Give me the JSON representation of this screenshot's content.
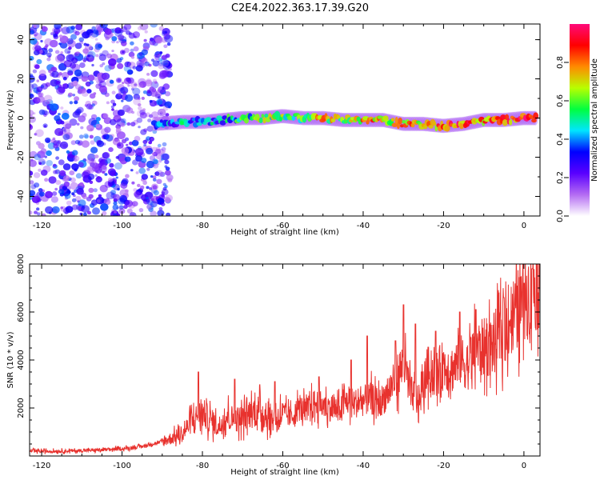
{
  "title": "C2E4.2022.363.17.39.G20",
  "colors": {
    "snr_line": "#e8322e",
    "axis": "#000000",
    "colorbar": [
      "#ffffff",
      "#b46cf2",
      "#5a00ff",
      "#0000ff",
      "#00e5ff",
      "#00ff40",
      "#b8ff00",
      "#ff8a00",
      "#ff0000",
      "#ff0a7a"
    ]
  },
  "chart_data": [
    {
      "type": "heatmap",
      "xlabel": "Height of straight line (km)",
      "ylabel": "Frequency (Hz)",
      "xlim": [
        -123,
        4
      ],
      "ylim": [
        -50,
        48
      ],
      "x_ticks": [
        "-120",
        "-100",
        "-80",
        "-60",
        "-40",
        "-20",
        "0"
      ],
      "x_tick_values": [
        -120,
        -100,
        -80,
        -60,
        -40,
        -20,
        0
      ],
      "y_ticks": [
        "-40",
        "-20",
        "0",
        "20",
        "40"
      ],
      "y_tick_values": [
        -40,
        -20,
        0,
        20,
        40
      ],
      "colorbar": {
        "label": "Normalized spectral amplitude",
        "range": [
          0,
          1
        ],
        "ticks": [
          "0.0",
          "0.2",
          "0.4",
          "0.6",
          "0.8"
        ],
        "tick_values": [
          0.0,
          0.2,
          0.4,
          0.6,
          0.8
        ]
      },
      "ridge": {
        "x": [
          -92,
          -85,
          -80,
          -75,
          -70,
          -65,
          -60,
          -55,
          -50,
          -45,
          -40,
          -35,
          -30,
          -25,
          -20,
          -15,
          -10,
          -5,
          0,
          3
        ],
        "frequency": [
          -3,
          -2,
          -2,
          -1,
          0,
          0,
          1,
          0,
          0,
          -1,
          -1,
          -1,
          -3,
          -3,
          -4,
          -3,
          -1,
          -1,
          0,
          0
        ],
        "amplitude": [
          0.35,
          0.4,
          0.4,
          0.45,
          0.5,
          0.55,
          0.6,
          0.6,
          0.7,
          0.6,
          0.75,
          0.7,
          0.75,
          0.7,
          0.8,
          0.85,
          0.75,
          0.8,
          0.9,
          0.95
        ]
      },
      "noise_region": {
        "x_range": [
          -123,
          -92
        ],
        "frequency_range": [
          -50,
          48
        ],
        "amplitude_range": [
          0.0,
          0.25
        ]
      }
    },
    {
      "type": "line",
      "xlabel": "Height of straight line (km)",
      "ylabel": "SNR (10 * v/v)",
      "xlim": [
        -123,
        4
      ],
      "ylim": [
        0,
        8000
      ],
      "x_ticks": [
        "-120",
        "-100",
        "-80",
        "-60",
        "-40",
        "-20",
        "0"
      ],
      "x_tick_values": [
        -120,
        -100,
        -80,
        -60,
        -40,
        -20,
        0
      ],
      "y_ticks": [
        "2000",
        "4000",
        "6000",
        "8000"
      ],
      "y_tick_values": [
        2000,
        4000,
        6000,
        8000
      ],
      "series": [
        {
          "x": [
            -123,
            -115,
            -105,
            -100,
            -95,
            -90,
            -85,
            -83,
            -80,
            -78,
            -76,
            -74,
            -72,
            -70,
            -68,
            -66,
            -64,
            -62,
            -60,
            -58,
            -56,
            -54,
            -52,
            -50,
            -48,
            -46,
            -44,
            -42,
            -40,
            -38,
            -36,
            -34,
            -32,
            -30,
            -28,
            -26,
            -24,
            -22,
            -20,
            -18,
            -16,
            -14,
            -12,
            -10,
            -8,
            -6,
            -4,
            -2,
            0,
            2,
            4
          ],
          "values": [
            200,
            200,
            250,
            300,
            400,
            600,
            900,
            1400,
            1800,
            1500,
            1200,
            1700,
            1500,
            1600,
            1800,
            1900,
            1700,
            1500,
            1800,
            1600,
            2000,
            1900,
            2200,
            2100,
            2000,
            1900,
            2300,
            2200,
            2300,
            2400,
            2200,
            2600,
            3200,
            3800,
            2600,
            2300,
            3600,
            3400,
            3800,
            3600,
            4000,
            3800,
            4400,
            4500,
            4600,
            5000,
            5600,
            6000,
            6500,
            7000,
            7300
          ],
          "peaks": {
            "x": [
              -81,
              -72,
              -62,
              -51,
              -43,
              -39,
              -32,
              -30,
              -27,
              -22,
              -16,
              -12,
              -5,
              0,
              2
            ],
            "values": [
              3500,
              3200,
              3100,
              3300,
              4000,
              5000,
              4800,
              6300,
              5500,
              5200,
              6000,
              6100,
              6600,
              7200,
              7800
            ]
          }
        }
      ]
    }
  ]
}
